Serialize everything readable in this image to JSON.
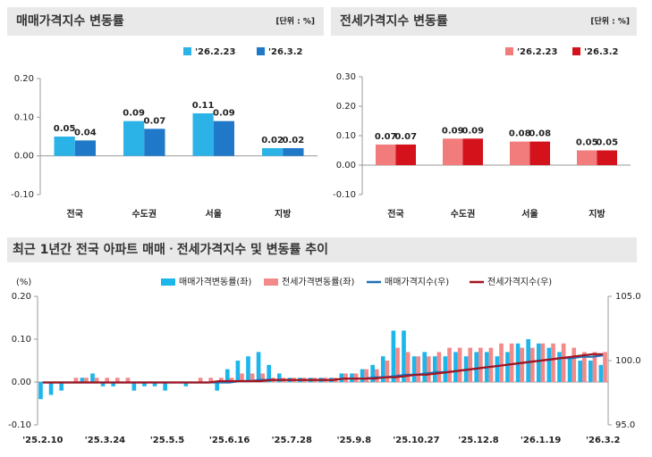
{
  "chart_data": [
    {
      "type": "bar",
      "title": "매매가격지수 변동률",
      "unit": "[단위 : %]",
      "categories": [
        "전국",
        "수도권",
        "서울",
        "지방"
      ],
      "series": [
        {
          "name": "'26.2.23",
          "color": "#2bb3e8",
          "values": [
            0.05,
            0.09,
            0.11,
            0.02
          ]
        },
        {
          "name": "'26.3.2",
          "color": "#1f78c8",
          "values": [
            0.04,
            0.07,
            0.09,
            0.02
          ]
        }
      ],
      "ylim": [
        -0.1,
        0.2
      ],
      "yticks": [
        {
          "value": -0.1,
          "label": "-0.10"
        },
        {
          "value": 0,
          "label": "0.00"
        },
        {
          "value": 0.1,
          "label": "0.10"
        },
        {
          "value": 0.2,
          "label": "0.20"
        }
      ],
      "grid": false
    },
    {
      "type": "bar",
      "title": "전세가격지수 변동률",
      "unit": "[단위 : %]",
      "categories": [
        "전국",
        "수도권",
        "서울",
        "지방"
      ],
      "series": [
        {
          "name": "'26.2.23",
          "color": "#f27b7b",
          "values": [
            0.07,
            0.09,
            0.08,
            0.05
          ]
        },
        {
          "name": "'26.3.2",
          "color": "#d3121c",
          "values": [
            0.07,
            0.09,
            0.08,
            0.05
          ]
        }
      ],
      "ylim": [
        -0.1,
        0.3
      ],
      "yticks": [
        {
          "value": -0.1,
          "label": "-0.10"
        },
        {
          "value": 0,
          "label": "0.00"
        },
        {
          "value": 0.1,
          "label": "0.10"
        },
        {
          "value": 0.2,
          "label": "0.20"
        },
        {
          "value": 0.3,
          "label": "0.30"
        }
      ],
      "grid": false
    },
    {
      "type": "combo",
      "title": "최근 1년간 전국 아파트 매매ㆍ전세가격지수 및 변동률 추이",
      "ylabel": "(%)",
      "categories": [
        "'25.2.10",
        null,
        null,
        null,
        null,
        null,
        "'25.3.24",
        null,
        null,
        null,
        null,
        null,
        "'25.5.5",
        null,
        null,
        null,
        null,
        null,
        "'25.6.16",
        null,
        null,
        null,
        null,
        null,
        "'25.7.28",
        null,
        null,
        null,
        null,
        null,
        "'25.9.8",
        null,
        null,
        null,
        null,
        null,
        "'25.10.27",
        null,
        null,
        null,
        null,
        null,
        "'25.12.8",
        null,
        null,
        null,
        null,
        null,
        "'26.1.19",
        null,
        null,
        null,
        null,
        null,
        "'26.3.2"
      ],
      "series": [
        {
          "name": "매매가격변동률(좌)",
          "kind": "bar",
          "color": "#1cb6ea",
          "values": [
            -0.04,
            -0.03,
            -0.02,
            0.0,
            0.01,
            0.02,
            -0.01,
            -0.01,
            0.0,
            -0.02,
            -0.01,
            -0.01,
            -0.02,
            0.0,
            -0.01,
            0.0,
            0.0,
            -0.02,
            0.03,
            0.05,
            0.06,
            0.07,
            0.04,
            0.02,
            0.01,
            0.01,
            0.01,
            0.01,
            0.01,
            0.02,
            0.02,
            0.03,
            0.04,
            0.06,
            0.12,
            0.12,
            0.06,
            0.07,
            0.06,
            0.06,
            0.07,
            0.06,
            0.07,
            0.07,
            0.06,
            0.07,
            0.09,
            0.1,
            0.09,
            0.08,
            0.07,
            0.06,
            0.05,
            0.05,
            0.04
          ]
        },
        {
          "name": "전세가격변동률(좌)",
          "kind": "bar",
          "color": "#f38a8a",
          "values": [
            0.0,
            0.0,
            0.0,
            0.01,
            0.01,
            0.01,
            0.01,
            0.01,
            0.01,
            0.0,
            0.0,
            0.0,
            0.0,
            0.0,
            0.0,
            0.01,
            0.01,
            0.01,
            0.01,
            0.02,
            0.02,
            0.02,
            0.01,
            0.01,
            0.01,
            0.01,
            0.01,
            0.01,
            0.01,
            0.02,
            0.02,
            0.03,
            0.03,
            0.05,
            0.08,
            0.07,
            0.06,
            0.06,
            0.07,
            0.08,
            0.08,
            0.08,
            0.08,
            0.08,
            0.09,
            0.09,
            0.08,
            0.08,
            0.09,
            0.09,
            0.09,
            0.08,
            0.07,
            0.07,
            0.07
          ]
        },
        {
          "name": "매매가격지수(우)",
          "kind": "line",
          "axis": "y2",
          "color": "#1f6fb5",
          "values": [
            98.3,
            98.3,
            98.3,
            98.3,
            98.3,
            98.3,
            98.3,
            98.3,
            98.3,
            98.3,
            98.3,
            98.3,
            98.3,
            98.3,
            98.3,
            98.3,
            98.3,
            98.3,
            98.3,
            98.4,
            98.4,
            98.5,
            98.5,
            98.5,
            98.5,
            98.5,
            98.5,
            98.5,
            98.5,
            98.6,
            98.6,
            98.6,
            98.7,
            98.7,
            98.8,
            98.9,
            98.9,
            99.0,
            99.1,
            99.1,
            99.2,
            99.3,
            99.4,
            99.5,
            99.6,
            99.7,
            99.8,
            99.9,
            100.0,
            100.1,
            100.2,
            100.2,
            100.3,
            100.3,
            100.4
          ]
        },
        {
          "name": "전세가격지수(우)",
          "kind": "line",
          "axis": "y2",
          "color": "#a3141f",
          "values": [
            98.3,
            98.3,
            98.3,
            98.3,
            98.3,
            98.3,
            98.3,
            98.3,
            98.3,
            98.3,
            98.3,
            98.3,
            98.3,
            98.3,
            98.3,
            98.3,
            98.3,
            98.4,
            98.4,
            98.4,
            98.4,
            98.4,
            98.5,
            98.5,
            98.5,
            98.5,
            98.5,
            98.5,
            98.5,
            98.6,
            98.6,
            98.6,
            98.6,
            98.7,
            98.7,
            98.8,
            98.9,
            98.9,
            99.0,
            99.1,
            99.2,
            99.3,
            99.4,
            99.5,
            99.6,
            99.7,
            99.8,
            99.9,
            100.0,
            100.1,
            100.2,
            100.3,
            100.4,
            100.5,
            100.5
          ]
        }
      ],
      "ylim": [
        -0.1,
        0.2
      ],
      "yticks": [
        {
          "value": -0.1,
          "label": "-0.10"
        },
        {
          "value": 0,
          "label": "0.00"
        },
        {
          "value": 0.1,
          "label": "0.10"
        },
        {
          "value": 0.2,
          "label": "0.20"
        }
      ],
      "y2lim": [
        95,
        105
      ],
      "y2ticks": [
        {
          "value": 95,
          "label": "95.0"
        },
        {
          "value": 100,
          "label": "100.0"
        },
        {
          "value": 105,
          "label": "105.0"
        }
      ],
      "grid": false
    }
  ]
}
